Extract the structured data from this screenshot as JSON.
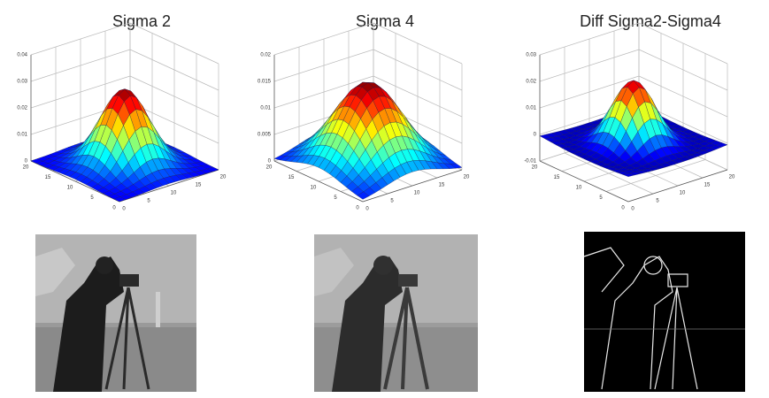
{
  "panels": [
    {
      "title": "Sigma 2",
      "z_ticks": [
        "0",
        "0.01",
        "0.02",
        "0.03",
        "0.04"
      ],
      "x_ticks": [
        "20",
        "15",
        "10",
        "5",
        "0"
      ],
      "y_ticks": [
        "0",
        "5",
        "10",
        "15",
        "20"
      ]
    },
    {
      "title": "Sigma 4",
      "z_ticks": [
        "0",
        "0.005",
        "0.01",
        "0.015",
        "0.02"
      ],
      "x_ticks": [
        "20",
        "15",
        "10",
        "5",
        "0"
      ],
      "y_ticks": [
        "0",
        "5",
        "10",
        "15",
        "20"
      ]
    },
    {
      "title": "Diff Sigma2-Sigma4",
      "z_ticks": [
        "-0.01",
        "0",
        "0.01",
        "0.02",
        "0.03"
      ],
      "x_ticks": [
        "20",
        "15",
        "10",
        "5",
        "0"
      ],
      "y_ticks": [
        "0",
        "5",
        "10",
        "15",
        "20"
      ]
    }
  ]
}
